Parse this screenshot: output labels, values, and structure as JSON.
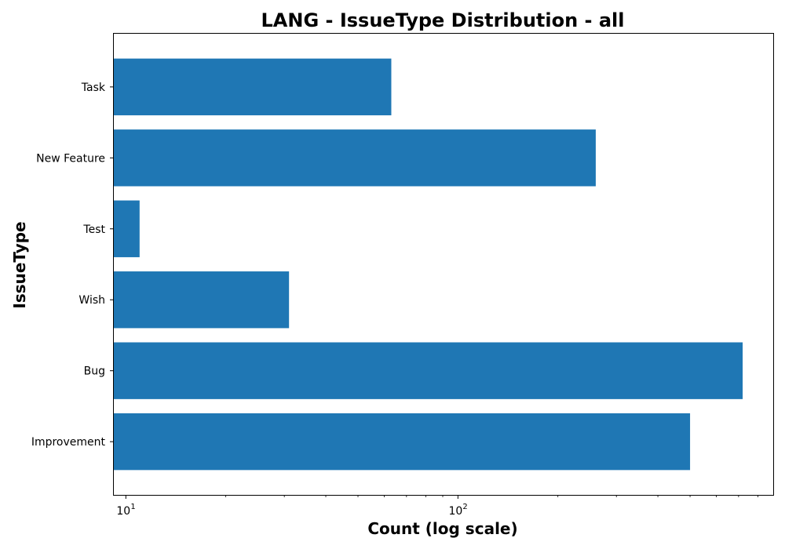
{
  "chart_data": {
    "type": "bar",
    "orientation": "horizontal",
    "title": "LANG - IssueType Distribution - all",
    "xlabel": "Count (log scale)",
    "ylabel": "IssueType",
    "x_scale": "log",
    "xlim": [
      9.2,
      890
    ],
    "x_major_ticks": [
      {
        "value": 10,
        "base": "10",
        "exp": "1"
      },
      {
        "value": 100,
        "base": "10",
        "exp": "2"
      }
    ],
    "categories": [
      "Improvement",
      "Bug",
      "Wish",
      "Test",
      "New Feature",
      "Task"
    ],
    "values": [
      500,
      720,
      31,
      11,
      260,
      63
    ],
    "bar_color": "#1f77b4",
    "grid": false,
    "legend": false
  }
}
